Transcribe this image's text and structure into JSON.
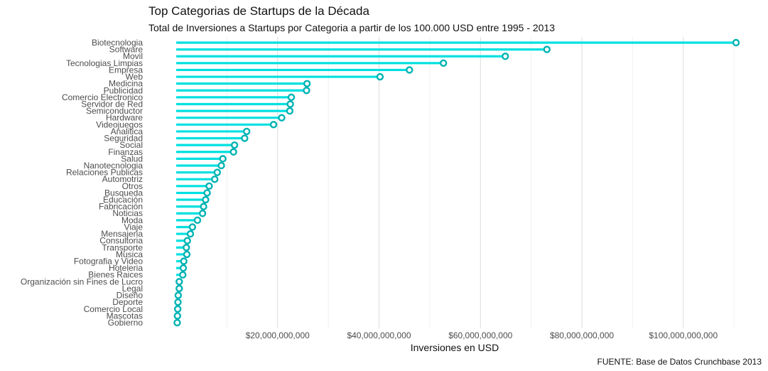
{
  "chart_data": {
    "type": "lollipop",
    "title": "Top Categorias de Startups de la Década",
    "subtitle": "Total de Inversiones a Startups por Categoria a partir de los 100.000 USD entre 1995 - 2013",
    "xlabel": "Inversiones en USD",
    "ylabel": "",
    "caption": "FUENTE: Base de Datos Crunchbase 2013",
    "xlim": [
      0,
      115000000000
    ],
    "ticks": [
      {
        "value": 20000000000,
        "label": "$20,000,000,000"
      },
      {
        "value": 40000000000,
        "label": "$40,000,000,000"
      },
      {
        "value": 60000000000,
        "label": "$60,000,000,000"
      },
      {
        "value": 80000000000,
        "label": "$80,000,000,000"
      },
      {
        "value": 100000000000,
        "label": "$100,000,000,000"
      }
    ],
    "grid": true,
    "color": "#00e0e0",
    "point_color": "#00b3b3",
    "categories": [
      "Biotecnologia",
      "Software",
      "Movil",
      "Tecnologias Limpias",
      "Empresa",
      "Web",
      "Medicina",
      "Publicidad",
      "Comercio Electronico",
      "Servidor de Red",
      "Semiconductor",
      "Hardware",
      "Videojuegos",
      "Analitica",
      "Seguridad",
      "Social",
      "Finanzas",
      "Salud",
      "Nanotecnologia",
      "Relaciones Publicas",
      "Automotriz",
      "Otros",
      "Busqueda",
      "Educación",
      "Fabricación",
      "Noticias",
      "Moda",
      "Viaje",
      "Mensajeria",
      "Consultoria",
      "Transporte",
      "Musica",
      "Fotografia y Video",
      "Hoteleria",
      "Bienes Raices",
      "Organización sin Fines de Lucro",
      "Legal",
      "Diseño",
      "Deporte",
      "Comercio Local",
      "Mascotas",
      "Gobierno"
    ],
    "values": [
      110400000000,
      73100000000,
      64900000000,
      52700000000,
      46000000000,
      40200000000,
      25800000000,
      25700000000,
      22700000000,
      22500000000,
      22400000000,
      20800000000,
      19200000000,
      13900000000,
      13500000000,
      11500000000,
      11300000000,
      9200000000,
      8900000000,
      8100000000,
      7600000000,
      6500000000,
      6100000000,
      5800000000,
      5400000000,
      5200000000,
      4200000000,
      3200000000,
      2800000000,
      2200000000,
      2000000000,
      2100000000,
      1500000000,
      1400000000,
      1300000000,
      600000000,
      600000000,
      400000000,
      350000000,
      300000000,
      250000000,
      200000000
    ]
  }
}
